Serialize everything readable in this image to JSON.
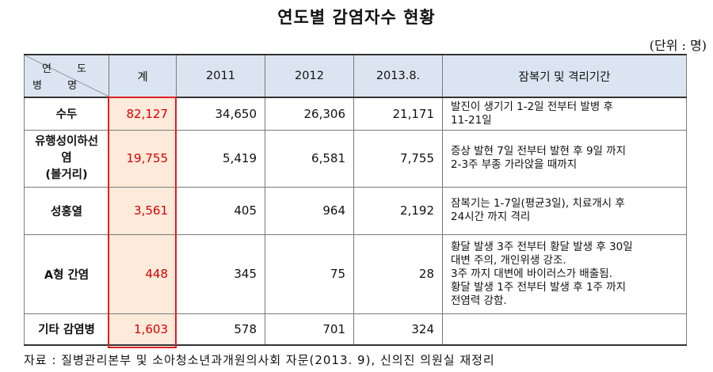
{
  "title": "연도별 감염자수 현황",
  "unit": "(단위 : 명)",
  "table": {
    "corner_top": "연 도",
    "corner_bottom": "병 명",
    "headers": [
      "계",
      "2011",
      "2012",
      "2013.8.",
      "잠복기 및 격리기간"
    ],
    "rows": [
      {
        "name": "수두",
        "total": "82,127",
        "y2011": "34,650",
        "y2012": "26,306",
        "y2013": "21,171",
        "note": [
          "발진이 생기기 1-2일 전부터 발병 후",
          "11-21일"
        ]
      },
      {
        "name_lines": [
          "유행성이하선",
          "염",
          "(볼거리)"
        ],
        "total": "19,755",
        "y2011": "5,419",
        "y2012": "6,581",
        "y2013": "7,755",
        "note": [
          "증상 발현 7일 전부터 발현 후 9일 까지",
          "2-3주 부종 가라앉을 때까지"
        ]
      },
      {
        "name": "성홍열",
        "total": "3,561",
        "y2011": "405",
        "y2012": "964",
        "y2013": "2,192",
        "note": [
          "잠복기는 1-7일(평균3일), 치료개시 후",
          "24시간 까지 격리"
        ]
      },
      {
        "name": "A형 간염",
        "total": "448",
        "y2011": "345",
        "y2012": "75",
        "y2013": "28",
        "note": [
          "황달 발생 3주 전부터 황달 발생 후 30일",
          "대변 주의, 개인위생 강조.",
          "3주 까지 대변에 바이러스가 배출됨.",
          "황달 발생 1주 전부터 발생 후 1주 까지",
          "전염력 강함."
        ]
      },
      {
        "name": "기타 감염병",
        "total": "1,603",
        "y2011": "578",
        "y2012": "701",
        "y2013": "324",
        "note": []
      }
    ]
  },
  "source": "자료 : 질병관리본부 및 소아청소년과개원의사회 자문(2013. 9), 신의진 의원실 재정리",
  "colors": {
    "header_bg": "#dbe5f1",
    "total_bg": "#fdeada",
    "highlight": "#e02020",
    "total_text": "#d40000"
  }
}
